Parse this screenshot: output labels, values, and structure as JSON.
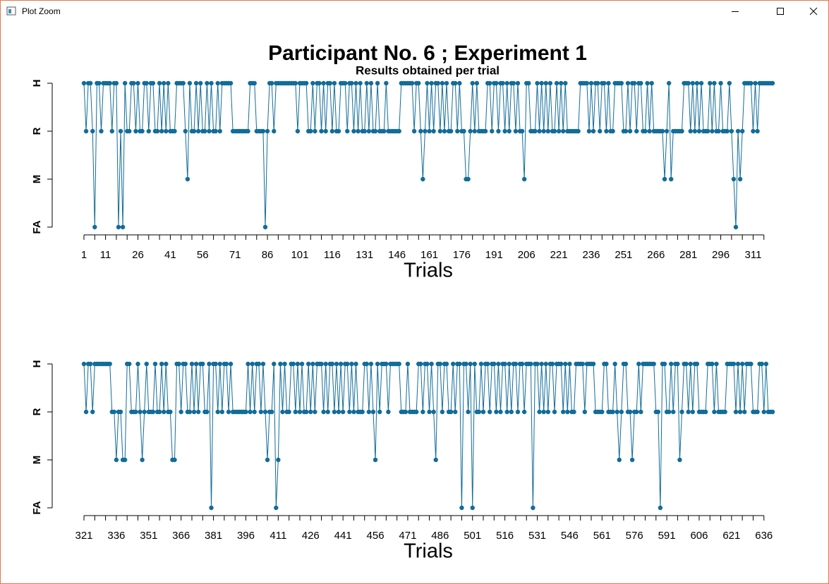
{
  "window": {
    "title": "Plot Zoom"
  },
  "chart_data": [
    {
      "type": "line",
      "title": "Participant No. 6 ; Experiment 1",
      "subtitle": "Results obtained per trial",
      "x_label": "Trials",
      "color": "#126c99",
      "xlim": [
        1,
        320
      ],
      "ylim": [
        1,
        4
      ],
      "yticks": [
        {
          "value": 1,
          "label": "FA"
        },
        {
          "value": 2,
          "label": "M"
        },
        {
          "value": 3,
          "label": "R"
        },
        {
          "value": 4,
          "label": "H"
        }
      ],
      "xticks": [
        1,
        11,
        26,
        41,
        56,
        71,
        86,
        101,
        116,
        131,
        146,
        161,
        176,
        191,
        206,
        221,
        236,
        251,
        266,
        281,
        296,
        311
      ],
      "minor_xticks": [
        6,
        16,
        21,
        31,
        36,
        46,
        51,
        61,
        66,
        76,
        81,
        91,
        96,
        106,
        111,
        121,
        126,
        136,
        141,
        151,
        156,
        166,
        171,
        181,
        186,
        196,
        201,
        211,
        216,
        226,
        231,
        241,
        246,
        256,
        261,
        271,
        276,
        286,
        291,
        301,
        306,
        316
      ],
      "x": [
        1,
        2,
        3,
        4,
        5,
        6,
        7,
        8,
        9,
        10,
        11,
        12,
        13,
        14,
        15,
        16,
        17,
        18,
        19,
        20,
        21,
        22,
        23,
        24,
        25,
        26,
        27,
        28,
        29,
        30,
        31,
        32,
        33,
        34,
        35,
        36,
        37,
        38,
        39,
        40,
        41,
        42,
        43,
        44,
        45,
        46,
        47,
        48,
        49,
        50,
        51,
        52,
        53,
        54,
        55,
        56,
        57,
        58,
        59,
        60,
        61,
        62,
        63,
        64,
        65,
        66,
        67,
        68,
        69,
        70,
        71,
        72,
        73,
        74,
        75,
        76,
        77,
        78,
        79,
        80,
        81,
        82,
        83,
        84,
        85,
        86,
        87,
        88,
        89,
        90,
        91,
        92,
        93,
        94,
        95,
        96,
        97,
        98,
        99,
        100,
        101,
        102,
        103,
        104,
        105,
        106,
        107,
        108,
        109,
        110,
        111,
        112,
        113,
        114,
        115,
        116,
        117,
        118,
        119,
        120,
        121,
        122,
        123,
        124,
        125,
        126,
        127,
        128,
        129,
        130,
        131,
        132,
        133,
        134,
        135,
        136,
        137,
        138,
        139,
        140,
        141,
        142,
        143,
        144,
        145,
        146,
        147,
        148,
        149,
        150,
        151,
        152,
        153,
        154,
        155,
        156,
        157,
        158,
        159,
        160,
        161,
        162,
        163,
        164,
        165,
        166,
        167,
        168,
        169,
        170,
        171,
        172,
        173,
        174,
        175,
        176,
        177,
        178,
        179,
        180,
        181,
        182,
        183,
        184,
        185,
        186,
        187,
        188,
        189,
        190,
        191,
        192,
        193,
        194,
        195,
        196,
        197,
        198,
        199,
        200,
        201,
        202,
        203,
        204,
        205,
        206,
        207,
        208,
        209,
        210,
        211,
        212,
        213,
        214,
        215,
        216,
        217,
        218,
        219,
        220,
        221,
        222,
        223,
        224,
        225,
        226,
        227,
        228,
        229,
        230,
        231,
        232,
        233,
        234,
        235,
        236,
        237,
        238,
        239,
        240,
        241,
        242,
        243,
        244,
        245,
        246,
        247,
        248,
        249,
        250,
        251,
        252,
        253,
        254,
        255,
        256,
        257,
        258,
        259,
        260,
        261,
        262,
        263,
        264,
        265,
        266,
        267,
        268,
        269,
        270,
        271,
        272,
        273,
        274,
        275,
        276,
        277,
        278,
        279,
        280,
        281,
        282,
        283,
        284,
        285,
        286,
        287,
        288,
        289,
        290,
        291,
        292,
        293,
        294,
        295,
        296,
        297,
        298,
        299,
        300,
        301,
        302,
        303,
        304,
        305,
        306,
        307,
        308,
        309,
        310,
        311,
        312,
        313,
        314,
        315,
        316,
        317,
        318,
        319,
        320
      ],
      "values": [
        4,
        3,
        4,
        4,
        3,
        1,
        4,
        4,
        3,
        4,
        4,
        4,
        4,
        3,
        4,
        4,
        1,
        3,
        1,
        4,
        3,
        3,
        4,
        4,
        3,
        4,
        3,
        3,
        4,
        4,
        3,
        4,
        4,
        3,
        3,
        4,
        3,
        4,
        3,
        4,
        3,
        3,
        3,
        4,
        4,
        4,
        4,
        3,
        2,
        4,
        3,
        3,
        4,
        3,
        4,
        3,
        3,
        4,
        3,
        4,
        3,
        3,
        4,
        3,
        4,
        4,
        4,
        4,
        4,
        3,
        3,
        3,
        3,
        3,
        3,
        3,
        3,
        4,
        4,
        4,
        3,
        3,
        3,
        3,
        1,
        3,
        4,
        4,
        3,
        4,
        4,
        4,
        4,
        4,
        4,
        4,
        4,
        4,
        4,
        3,
        4,
        4,
        4,
        4,
        3,
        3,
        4,
        3,
        4,
        4,
        3,
        4,
        3,
        4,
        4,
        3,
        4,
        3,
        3,
        4,
        4,
        4,
        3,
        4,
        4,
        3,
        4,
        3,
        4,
        3,
        3,
        4,
        3,
        4,
        3,
        3,
        4,
        3,
        3,
        3,
        4,
        3,
        3,
        3,
        3,
        3,
        3,
        4,
        4,
        4,
        4,
        4,
        4,
        3,
        4,
        4,
        3,
        2,
        3,
        4,
        3,
        4,
        3,
        4,
        4,
        3,
        4,
        3,
        4,
        3,
        3,
        4,
        4,
        3,
        4,
        3,
        3,
        2,
        2,
        3,
        4,
        3,
        4,
        3,
        3,
        3,
        3,
        4,
        4,
        3,
        4,
        4,
        3,
        4,
        4,
        3,
        4,
        3,
        4,
        4,
        3,
        4,
        3,
        3,
        2,
        4,
        4,
        3,
        3,
        3,
        4,
        3,
        4,
        3,
        4,
        3,
        4,
        3,
        3,
        4,
        3,
        4,
        3,
        4,
        3,
        3,
        3,
        3,
        3,
        3,
        4,
        4,
        4,
        4,
        3,
        4,
        3,
        4,
        4,
        3,
        4,
        4,
        3,
        4,
        3,
        3,
        4,
        4,
        4,
        4,
        3,
        3,
        4,
        3,
        4,
        4,
        3,
        4,
        4,
        3,
        3,
        4,
        3,
        4,
        3,
        3,
        3,
        3,
        3,
        2,
        3,
        4,
        2,
        3,
        3,
        3,
        3,
        3,
        4,
        4,
        4,
        3,
        4,
        3,
        4,
        3,
        4,
        3,
        3,
        3,
        4,
        3,
        4,
        3,
        3,
        4,
        3,
        3,
        3,
        4,
        3,
        2,
        1,
        3,
        2,
        3,
        4,
        4,
        4,
        4,
        3,
        4,
        3,
        4,
        4,
        4,
        4,
        4,
        4,
        4
      ]
    },
    {
      "type": "line",
      "x_label": "Trials",
      "color": "#126c99",
      "xlim": [
        321,
        640
      ],
      "ylim": [
        1,
        4
      ],
      "yticks": [
        {
          "value": 1,
          "label": "FA"
        },
        {
          "value": 2,
          "label": "M"
        },
        {
          "value": 3,
          "label": "R"
        },
        {
          "value": 4,
          "label": "H"
        }
      ],
      "xticks": [
        321,
        336,
        351,
        366,
        381,
        396,
        411,
        426,
        441,
        456,
        471,
        486,
        501,
        516,
        531,
        546,
        561,
        576,
        591,
        606,
        621,
        636
      ],
      "minor_xticks": [
        326,
        331,
        341,
        346,
        356,
        361,
        371,
        376,
        386,
        391,
        401,
        406,
        416,
        421,
        431,
        436,
        446,
        451,
        461,
        466,
        476,
        481,
        491,
        496,
        506,
        511,
        521,
        526,
        536,
        541,
        551,
        556,
        566,
        571,
        581,
        586,
        596,
        601,
        611,
        616,
        626,
        631
      ],
      "x": [
        321,
        322,
        323,
        324,
        325,
        326,
        327,
        328,
        329,
        330,
        331,
        332,
        333,
        334,
        335,
        336,
        337,
        338,
        339,
        340,
        341,
        342,
        343,
        344,
        345,
        346,
        347,
        348,
        349,
        350,
        351,
        352,
        353,
        354,
        355,
        356,
        357,
        358,
        359,
        360,
        361,
        362,
        363,
        364,
        365,
        366,
        367,
        368,
        369,
        370,
        371,
        372,
        373,
        374,
        375,
        376,
        377,
        378,
        379,
        380,
        381,
        382,
        383,
        384,
        385,
        386,
        387,
        388,
        389,
        390,
        391,
        392,
        393,
        394,
        395,
        396,
        397,
        398,
        399,
        400,
        401,
        402,
        403,
        404,
        405,
        406,
        407,
        408,
        409,
        410,
        411,
        412,
        413,
        414,
        415,
        416,
        417,
        418,
        419,
        420,
        421,
        422,
        423,
        424,
        425,
        426,
        427,
        428,
        429,
        430,
        431,
        432,
        433,
        434,
        435,
        436,
        437,
        438,
        439,
        440,
        441,
        442,
        443,
        444,
        445,
        446,
        447,
        448,
        449,
        450,
        451,
        452,
        453,
        454,
        455,
        456,
        457,
        458,
        459,
        460,
        461,
        462,
        463,
        464,
        465,
        466,
        467,
        468,
        469,
        470,
        471,
        472,
        473,
        474,
        475,
        476,
        477,
        478,
        479,
        480,
        481,
        482,
        483,
        484,
        485,
        486,
        487,
        488,
        489,
        490,
        491,
        492,
        493,
        494,
        495,
        496,
        497,
        498,
        499,
        500,
        501,
        502,
        503,
        504,
        505,
        506,
        507,
        508,
        509,
        510,
        511,
        512,
        513,
        514,
        515,
        516,
        517,
        518,
        519,
        520,
        521,
        522,
        523,
        524,
        525,
        526,
        527,
        528,
        529,
        530,
        531,
        532,
        533,
        534,
        535,
        536,
        537,
        538,
        539,
        540,
        541,
        542,
        543,
        544,
        545,
        546,
        547,
        548,
        549,
        550,
        551,
        552,
        553,
        554,
        555,
        556,
        557,
        558,
        559,
        560,
        561,
        562,
        563,
        564,
        565,
        566,
        567,
        568,
        569,
        570,
        571,
        572,
        573,
        574,
        575,
        576,
        577,
        578,
        579,
        580,
        581,
        582,
        583,
        584,
        585,
        586,
        587,
        588,
        589,
        590,
        591,
        592,
        593,
        594,
        595,
        596,
        597,
        598,
        599,
        600,
        601,
        602,
        603,
        604,
        605,
        606,
        607,
        608,
        609,
        610,
        611,
        612,
        613,
        614,
        615,
        616,
        617,
        618,
        619,
        620,
        621,
        622,
        623,
        624,
        625,
        626,
        627,
        628,
        629,
        630,
        631,
        632,
        633,
        634,
        635,
        636,
        637,
        638,
        639,
        640
      ],
      "values": [
        4,
        3,
        4,
        4,
        3,
        4,
        4,
        4,
        4,
        4,
        4,
        4,
        4,
        3,
        3,
        2,
        3,
        3,
        2,
        2,
        4,
        4,
        3,
        3,
        3,
        4,
        3,
        2,
        3,
        4,
        3,
        3,
        3,
        4,
        3,
        3,
        4,
        3,
        4,
        3,
        3,
        2,
        2,
        4,
        4,
        3,
        4,
        4,
        3,
        3,
        4,
        3,
        4,
        3,
        4,
        4,
        3,
        3,
        4,
        1,
        4,
        4,
        3,
        4,
        3,
        4,
        4,
        3,
        4,
        3,
        3,
        3,
        3,
        3,
        3,
        3,
        4,
        3,
        4,
        3,
        4,
        4,
        3,
        4,
        3,
        2,
        3,
        3,
        4,
        1,
        2,
        4,
        3,
        4,
        3,
        3,
        4,
        4,
        3,
        4,
        3,
        4,
        3,
        3,
        4,
        3,
        4,
        3,
        4,
        4,
        4,
        3,
        4,
        3,
        4,
        4,
        3,
        4,
        3,
        4,
        3,
        4,
        4,
        3,
        4,
        3,
        4,
        3,
        3,
        3,
        4,
        4,
        3,
        4,
        3,
        2,
        4,
        3,
        4,
        4,
        4,
        3,
        4,
        4,
        4,
        4,
        4,
        3,
        3,
        3,
        4,
        3,
        3,
        3,
        3,
        4,
        4,
        3,
        4,
        4,
        3,
        4,
        3,
        2,
        4,
        4,
        3,
        4,
        4,
        3,
        3,
        4,
        3,
        4,
        4,
        1,
        4,
        4,
        3,
        4,
        1,
        4,
        3,
        3,
        4,
        3,
        4,
        4,
        3,
        4,
        4,
        3,
        4,
        3,
        4,
        4,
        3,
        4,
        3,
        4,
        4,
        3,
        4,
        4,
        3,
        4,
        4,
        4,
        1,
        4,
        4,
        3,
        4,
        3,
        4,
        3,
        4,
        4,
        3,
        4,
        4,
        4,
        3,
        4,
        3,
        4,
        3,
        3,
        4,
        4,
        4,
        4,
        3,
        4,
        4,
        4,
        4,
        3,
        3,
        3,
        3,
        4,
        4,
        3,
        3,
        3,
        4,
        3,
        2,
        3,
        4,
        4,
        3,
        3,
        2,
        3,
        3,
        4,
        3,
        4,
        4,
        4,
        4,
        4,
        4,
        3,
        3,
        1,
        4,
        4,
        3,
        3,
        4,
        3,
        4,
        4,
        2,
        3,
        4,
        4,
        3,
        4,
        3,
        4,
        4,
        3,
        3,
        3,
        3,
        4,
        4,
        4,
        3,
        4,
        3,
        3,
        3,
        3,
        4,
        4,
        4,
        4,
        3,
        4,
        3,
        4,
        3,
        4,
        4,
        4,
        3,
        3,
        3,
        4,
        4,
        3,
        4,
        3,
        3,
        3
      ]
    }
  ]
}
